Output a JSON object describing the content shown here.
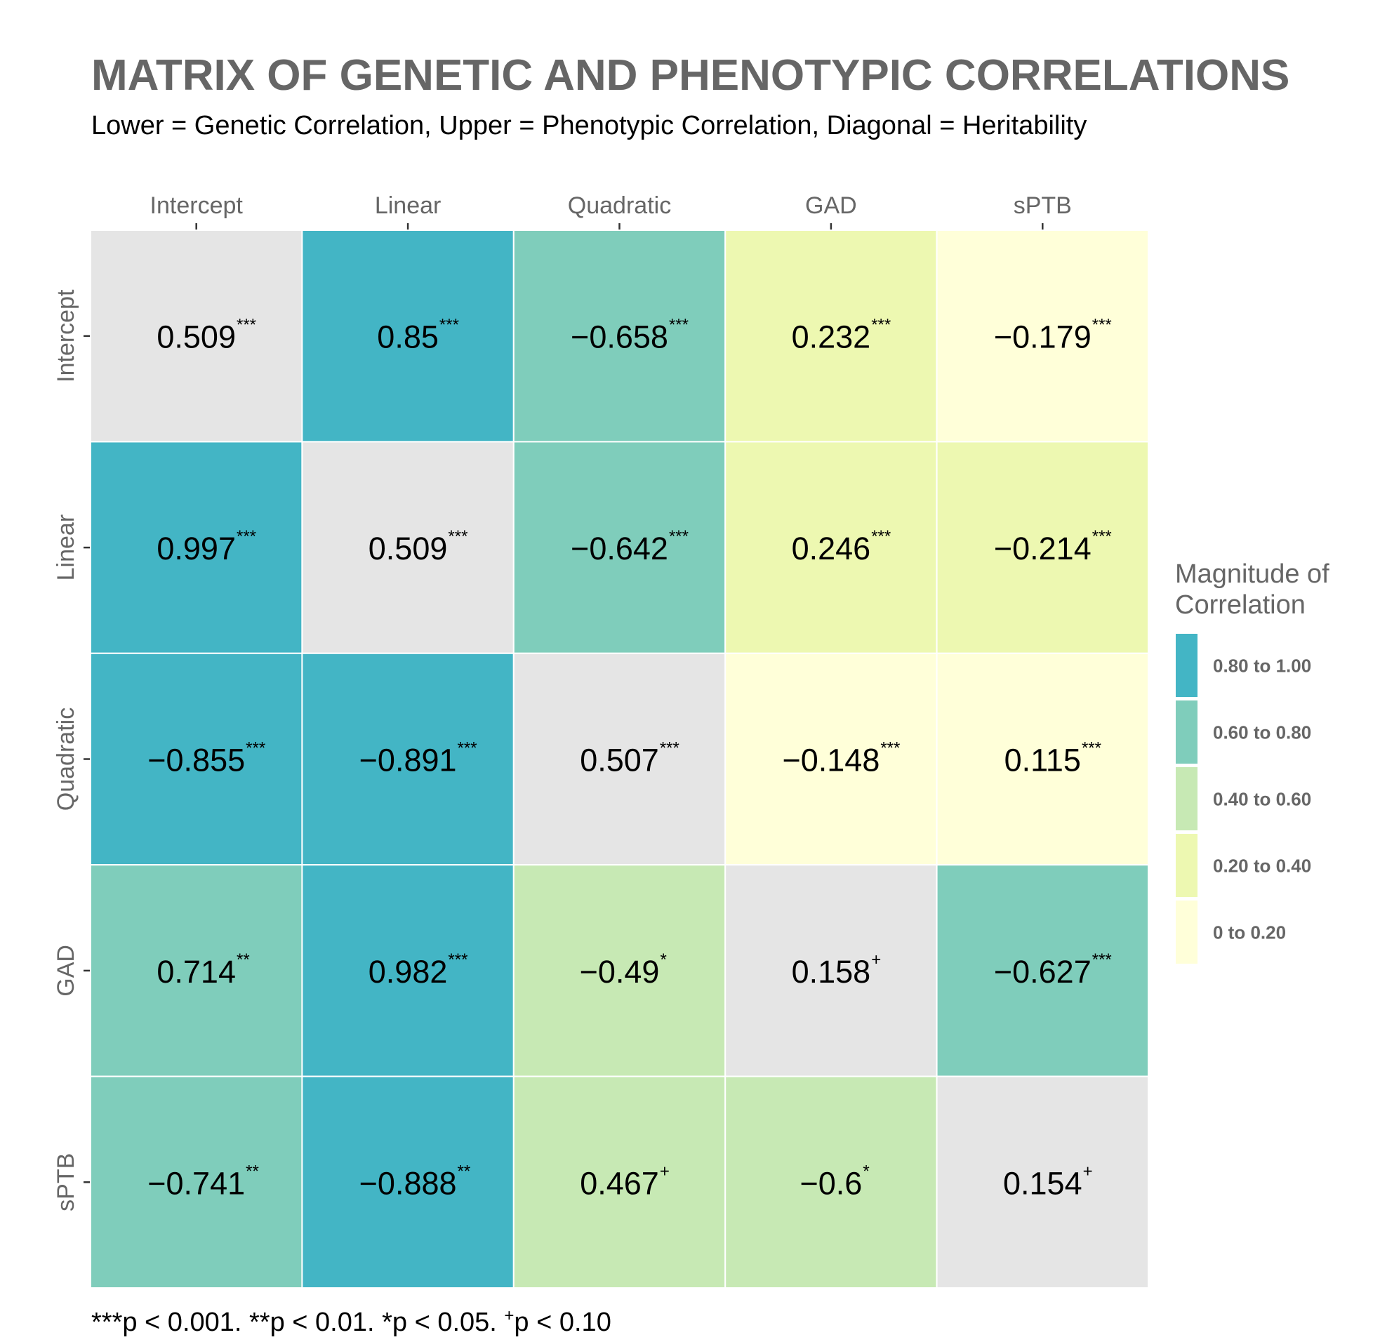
{
  "chart_data": {
    "type": "heatmap",
    "title": "MATRIX OF GENETIC AND PHENOTYPIC CORRELATIONS",
    "subtitle": "Lower = Genetic Correlation, Upper = Phenotypic Correlation, Diagonal = Heritability",
    "x_categories": [
      "Intercept",
      "Linear",
      "Quadratic",
      "GAD",
      "sPTB"
    ],
    "y_categories": [
      "Intercept",
      "Linear",
      "Quadratic",
      "GAD",
      "sPTB"
    ],
    "cells": [
      [
        {
          "label": "0.509",
          "sig": "***",
          "bin": "diag"
        },
        {
          "label": "0.85",
          "sig": "***",
          "bin": 4
        },
        {
          "label": "−0.658",
          "sig": "***",
          "bin": 3
        },
        {
          "label": "0.232",
          "sig": "***",
          "bin": 1
        },
        {
          "label": "−0.179",
          "sig": "***",
          "bin": 0
        }
      ],
      [
        {
          "label": "0.997",
          "sig": "***",
          "bin": 4
        },
        {
          "label": "0.509",
          "sig": "***",
          "bin": "diag"
        },
        {
          "label": "−0.642",
          "sig": "***",
          "bin": 3
        },
        {
          "label": "0.246",
          "sig": "***",
          "bin": 1
        },
        {
          "label": "−0.214",
          "sig": "***",
          "bin": 1
        }
      ],
      [
        {
          "label": "−0.855",
          "sig": "***",
          "bin": 4
        },
        {
          "label": "−0.891",
          "sig": "***",
          "bin": 4
        },
        {
          "label": "0.507",
          "sig": "***",
          "bin": "diag"
        },
        {
          "label": "−0.148",
          "sig": "***",
          "bin": 0
        },
        {
          "label": "0.115",
          "sig": "***",
          "bin": 0
        }
      ],
      [
        {
          "label": "0.714",
          "sig": "**",
          "bin": 3
        },
        {
          "label": "0.982",
          "sig": "***",
          "bin": 4
        },
        {
          "label": "−0.49",
          "sig": "*",
          "bin": 2
        },
        {
          "label": "0.158",
          "sig": "+",
          "bin": "diag"
        },
        {
          "label": "−0.627",
          "sig": "***",
          "bin": 3
        }
      ],
      [
        {
          "label": "−0.741",
          "sig": "**",
          "bin": 3
        },
        {
          "label": "−0.888",
          "sig": "**",
          "bin": 4
        },
        {
          "label": "0.467",
          "sig": "+",
          "bin": 2
        },
        {
          "label": "−0.6",
          "sig": "*",
          "bin": 2
        },
        {
          "label": "0.154",
          "sig": "+",
          "bin": "diag"
        }
      ]
    ],
    "legend": {
      "title_line1": "Magnitude of",
      "title_line2": "Correlation",
      "bins": [
        {
          "label": "0.80 to 1.00",
          "color": "#43B5C5"
        },
        {
          "label": "0.60 to 0.80",
          "color": "#7FCDBB"
        },
        {
          "label": "0.40 to 0.60",
          "color": "#C7E9B4"
        },
        {
          "label": "0.20 to 0.40",
          "color": "#EDF8B1"
        },
        {
          "label": "0 to 0.20",
          "color": "#FFFFD9"
        }
      ]
    },
    "bin_colors": [
      "#FFFFD9",
      "#EDF8B1",
      "#C7E9B4",
      "#7FCDBB",
      "#43B5C5"
    ],
    "diagonal_color": "#E5E5E5",
    "caption_parts": [
      {
        "text": "***p < 0.001. **p < 0.01. *p < 0.05. ",
        "sup": false
      },
      {
        "text": "+",
        "sup": true
      },
      {
        "text": "p < 0.10",
        "sup": false
      }
    ]
  }
}
